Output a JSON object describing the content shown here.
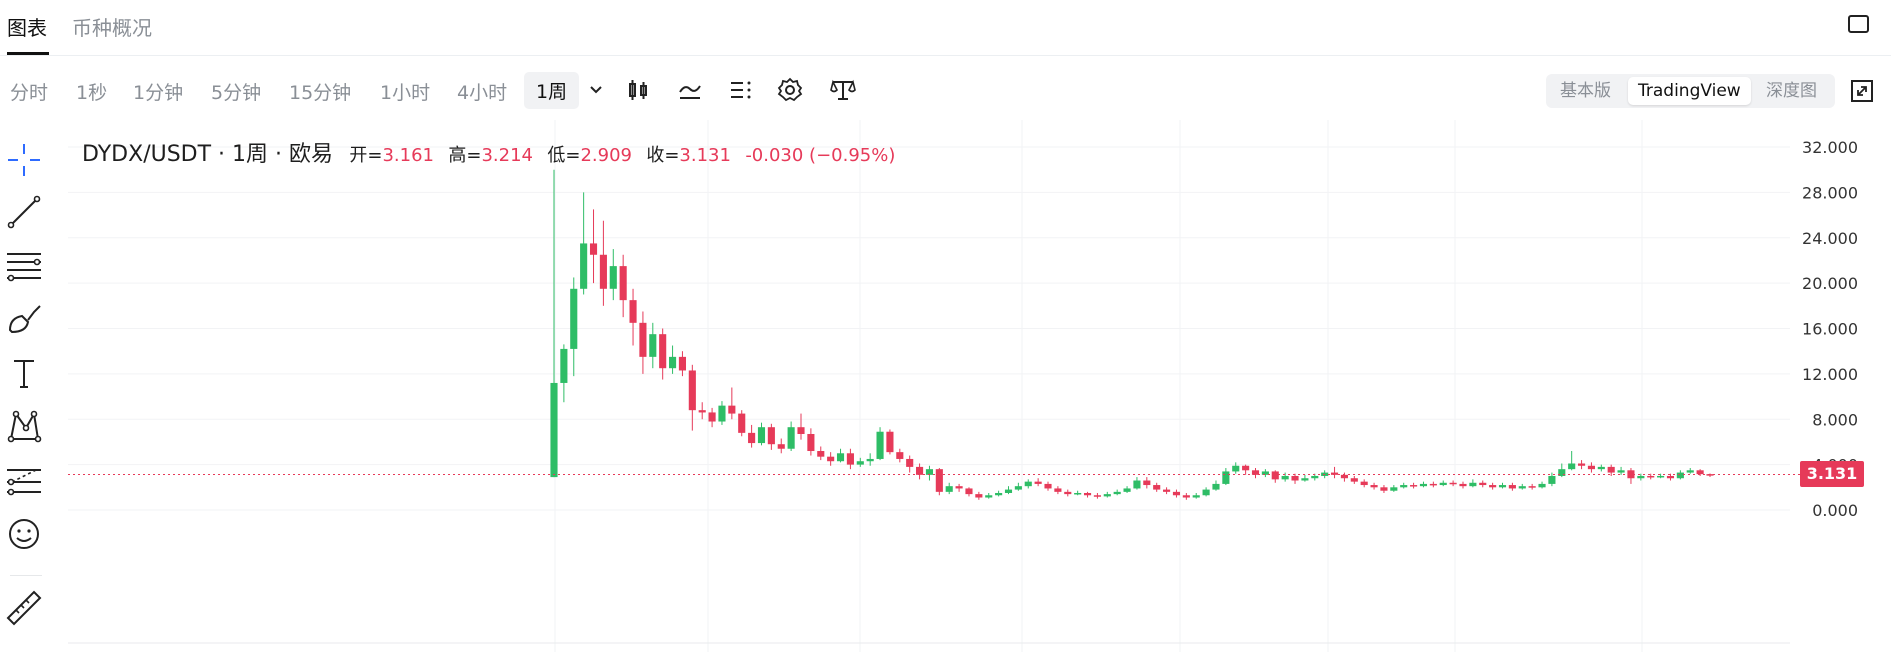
{
  "tabs": {
    "chart": "图表",
    "overview": "币种概况"
  },
  "toolbar": {
    "timeframes": [
      "分时",
      "1秒",
      "1分钟",
      "5分钟",
      "15分钟",
      "1小时",
      "4小时"
    ],
    "selected_timeframe": "1周",
    "view_modes": [
      "基本版",
      "TradingView",
      "深度图"
    ],
    "active_view": "TradingView"
  },
  "left_tools": [
    "crosshair-icon",
    "trend-line-icon",
    "fib-lines-icon",
    "brush-icon",
    "text-tool-icon",
    "pattern-icon",
    "forecast-icon",
    "emoji-icon",
    "ruler-icon"
  ],
  "legend": {
    "symbol": "DYDX/USDT · 1周 · 欧易",
    "open_label": "开=",
    "open": "3.161",
    "high_label": "高=",
    "high": "3.214",
    "low_label": "低=",
    "low": "2.909",
    "close_label": "收=",
    "close": "3.131",
    "change": "-0.030 (−0.95%)"
  },
  "colors": {
    "up": "#2ebd66",
    "down": "#e63a59",
    "accent": "#2e6bff"
  },
  "chart_data": {
    "type": "candlestick",
    "y_ticks": [
      "32.000",
      "28.000",
      "24.000",
      "20.000",
      "16.000",
      "12.000",
      "8.000",
      "4.000",
      "0.000"
    ],
    "ylim": [
      0,
      32
    ],
    "last_price": "3.131",
    "last_price_value": 3.131,
    "candles": [
      [
        2.9,
        11.2,
        30.0,
        2.9
      ],
      [
        11.2,
        14.2,
        14.6,
        9.5
      ],
      [
        14.2,
        19.5,
        20.5,
        11.8
      ],
      [
        19.5,
        23.5,
        28.0,
        19.0
      ],
      [
        23.5,
        22.5,
        26.5,
        20.0
      ],
      [
        22.5,
        19.5,
        25.5,
        18.0
      ],
      [
        19.5,
        21.5,
        23.0,
        18.5
      ],
      [
        21.5,
        18.5,
        22.5,
        17.0
      ],
      [
        18.5,
        16.5,
        19.5,
        14.5
      ],
      [
        16.5,
        13.5,
        17.5,
        12.0
      ],
      [
        13.5,
        15.5,
        16.5,
        12.5
      ],
      [
        15.5,
        12.5,
        16.0,
        11.5
      ],
      [
        12.5,
        13.5,
        14.5,
        12.0
      ],
      [
        13.5,
        12.3,
        14.0,
        11.8
      ],
      [
        12.3,
        8.8,
        12.8,
        7.0
      ],
      [
        8.8,
        8.6,
        9.5,
        8.0
      ],
      [
        8.6,
        7.8,
        9.0,
        7.3
      ],
      [
        7.8,
        9.2,
        9.6,
        7.5
      ],
      [
        9.2,
        8.5,
        10.8,
        8.0
      ],
      [
        8.5,
        6.8,
        8.8,
        6.5
      ],
      [
        6.8,
        5.9,
        7.5,
        5.5
      ],
      [
        5.9,
        7.3,
        7.7,
        5.7
      ],
      [
        7.3,
        5.8,
        7.6,
        5.3
      ],
      [
        5.8,
        5.4,
        6.3,
        5.0
      ],
      [
        5.4,
        7.3,
        7.8,
        5.2
      ],
      [
        7.3,
        6.7,
        8.5,
        6.2
      ],
      [
        6.7,
        5.2,
        7.2,
        4.8
      ],
      [
        5.2,
        4.7,
        5.6,
        4.4
      ],
      [
        4.7,
        4.3,
        5.1,
        3.9
      ],
      [
        4.3,
        5.0,
        5.4,
        4.2
      ],
      [
        5.0,
        4.0,
        5.4,
        3.6
      ],
      [
        4.0,
        4.3,
        4.6,
        3.8
      ],
      [
        4.3,
        4.5,
        5.0,
        3.9
      ],
      [
        4.5,
        6.9,
        7.3,
        4.4
      ],
      [
        6.9,
        5.1,
        7.1,
        4.9
      ],
      [
        5.1,
        4.5,
        5.4,
        4.2
      ],
      [
        4.5,
        3.8,
        4.8,
        3.3
      ],
      [
        3.8,
        3.1,
        4.1,
        2.7
      ],
      [
        3.1,
        3.6,
        3.9,
        2.6
      ],
      [
        3.6,
        1.6,
        3.7,
        1.3
      ],
      [
        1.6,
        2.1,
        2.4,
        1.4
      ],
      [
        2.1,
        1.9,
        2.3,
        1.6
      ],
      [
        1.9,
        1.4,
        2.0,
        1.2
      ],
      [
        1.4,
        1.1,
        1.6,
        0.9
      ],
      [
        1.1,
        1.3,
        1.5,
        1.0
      ],
      [
        1.3,
        1.5,
        1.7,
        1.2
      ],
      [
        1.5,
        1.8,
        2.1,
        1.4
      ],
      [
        1.8,
        2.1,
        2.4,
        1.7
      ],
      [
        2.1,
        2.5,
        2.7,
        1.9
      ],
      [
        2.5,
        2.3,
        2.8,
        2.1
      ],
      [
        2.3,
        1.9,
        2.5,
        1.7
      ],
      [
        1.9,
        1.6,
        2.1,
        1.4
      ],
      [
        1.6,
        1.4,
        1.8,
        1.2
      ],
      [
        1.4,
        1.5,
        1.7,
        1.3
      ],
      [
        1.5,
        1.3,
        1.6,
        1.1
      ],
      [
        1.3,
        1.2,
        1.5,
        1.0
      ],
      [
        1.2,
        1.4,
        1.6,
        1.1
      ],
      [
        1.4,
        1.6,
        1.8,
        1.3
      ],
      [
        1.6,
        1.9,
        2.1,
        1.5
      ],
      [
        1.9,
        2.6,
        2.9,
        1.8
      ],
      [
        2.6,
        2.2,
        2.9,
        1.9
      ],
      [
        2.2,
        1.8,
        2.4,
        1.6
      ],
      [
        1.8,
        1.6,
        2.0,
        1.4
      ],
      [
        1.6,
        1.3,
        1.8,
        1.1
      ],
      [
        1.3,
        1.1,
        1.5,
        0.9
      ],
      [
        1.1,
        1.3,
        1.5,
        1.0
      ],
      [
        1.3,
        1.8,
        2.0,
        1.2
      ],
      [
        1.8,
        2.3,
        2.6,
        1.7
      ],
      [
        2.3,
        3.4,
        3.7,
        2.2
      ],
      [
        3.4,
        3.9,
        4.2,
        3.2
      ],
      [
        3.9,
        3.5,
        4.0,
        3.1
      ],
      [
        3.5,
        3.1,
        3.7,
        2.8
      ],
      [
        3.1,
        3.4,
        3.6,
        2.9
      ],
      [
        3.4,
        2.7,
        3.5,
        2.4
      ],
      [
        2.7,
        3.0,
        3.3,
        2.5
      ],
      [
        3.0,
        2.6,
        3.2,
        2.3
      ],
      [
        2.6,
        2.8,
        3.1,
        2.5
      ],
      [
        2.8,
        3.0,
        3.2,
        2.6
      ],
      [
        3.0,
        3.3,
        3.5,
        2.8
      ],
      [
        3.3,
        3.1,
        3.8,
        2.8
      ],
      [
        3.1,
        2.8,
        3.3,
        2.5
      ],
      [
        2.8,
        2.5,
        3.0,
        2.3
      ],
      [
        2.5,
        2.2,
        2.7,
        2.0
      ],
      [
        2.2,
        2.0,
        2.4,
        1.8
      ],
      [
        2.0,
        1.7,
        2.2,
        1.5
      ],
      [
        1.7,
        2.0,
        2.2,
        1.6
      ],
      [
        2.0,
        2.2,
        2.4,
        1.9
      ],
      [
        2.2,
        2.1,
        2.4,
        1.9
      ],
      [
        2.1,
        2.3,
        2.5,
        2.0
      ],
      [
        2.3,
        2.2,
        2.5,
        2.0
      ],
      [
        2.2,
        2.4,
        2.6,
        2.1
      ],
      [
        2.4,
        2.3,
        2.6,
        2.1
      ],
      [
        2.3,
        2.1,
        2.5,
        1.9
      ],
      [
        2.1,
        2.4,
        2.7,
        2.0
      ],
      [
        2.4,
        2.2,
        2.6,
        2.0
      ],
      [
        2.2,
        2.0,
        2.4,
        1.8
      ],
      [
        2.0,
        2.2,
        2.4,
        1.9
      ],
      [
        2.2,
        1.9,
        2.4,
        1.7
      ],
      [
        1.9,
        2.1,
        2.3,
        1.8
      ],
      [
        2.1,
        2.0,
        2.3,
        1.8
      ],
      [
        2.0,
        2.3,
        2.5,
        1.9
      ],
      [
        2.3,
        3.0,
        3.3,
        2.1
      ],
      [
        3.0,
        3.6,
        4.1,
        2.9
      ],
      [
        3.6,
        4.1,
        5.2,
        3.5
      ],
      [
        4.1,
        3.9,
        4.4,
        3.6
      ],
      [
        3.9,
        3.6,
        4.2,
        3.3
      ],
      [
        3.6,
        3.8,
        4.0,
        3.4
      ],
      [
        3.8,
        3.3,
        4.0,
        3.0
      ],
      [
        3.3,
        3.5,
        3.8,
        3.1
      ],
      [
        3.5,
        2.8,
        3.7,
        2.3
      ],
      [
        2.8,
        3.0,
        3.2,
        2.6
      ],
      [
        3.0,
        2.9,
        3.2,
        2.7
      ],
      [
        2.9,
        3.0,
        3.2,
        2.8
      ],
      [
        3.0,
        2.8,
        3.2,
        2.6
      ],
      [
        2.8,
        3.3,
        3.5,
        2.7
      ],
      [
        3.3,
        3.5,
        3.7,
        3.2
      ],
      [
        3.5,
        3.16,
        3.6,
        3.0
      ],
      [
        3.161,
        3.131,
        3.214,
        2.909
      ]
    ]
  }
}
